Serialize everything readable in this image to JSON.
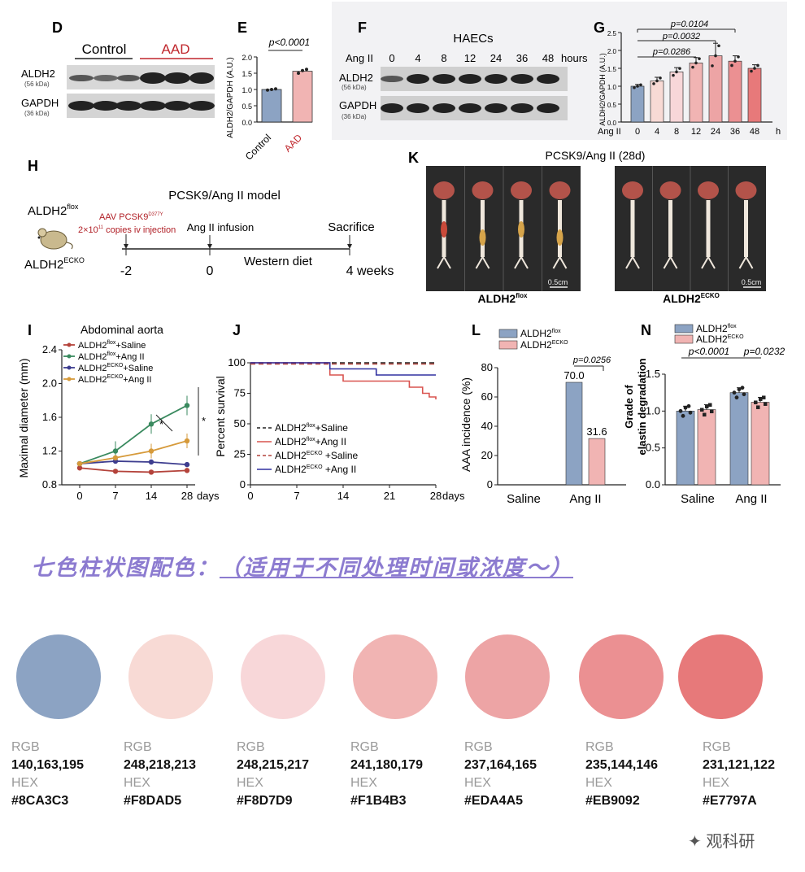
{
  "panels": {
    "D": {
      "label": "D",
      "groups": [
        "Control",
        "AAD"
      ],
      "bands": [
        {
          "name": "ALDH2",
          "size": "(56 kDa)"
        },
        {
          "name": "GAPDH",
          "size": "(36 kDa)"
        }
      ]
    },
    "E": {
      "label": "E",
      "pvalue": "p<0.0001",
      "ylabel": "ALDH2/GAPDH (A.U.)",
      "yticks": [
        "0.0",
        "0.5",
        "1.0",
        "1.5",
        "2.0"
      ],
      "categories": [
        "Control",
        "AAD"
      ],
      "values": [
        1.0,
        1.56
      ],
      "points": [
        [
          0.98,
          1.0,
          1.02
        ],
        [
          1.5,
          1.58,
          1.62
        ]
      ],
      "ylim": [
        0,
        2.0
      ]
    },
    "F": {
      "label": "F",
      "title": "HAECs",
      "row_label": "Ang II",
      "times": [
        "0",
        "4",
        "8",
        "12",
        "24",
        "36",
        "48"
      ],
      "unit": "hours",
      "bands": [
        {
          "name": "ALDH2",
          "size": "(56 kDa)"
        },
        {
          "name": "GAPDH",
          "size": "(36 kDa)"
        }
      ]
    },
    "G": {
      "label": "G",
      "ylabel": "ALDH2/GAPDH (A.U.)",
      "yticks": [
        "0.0",
        "0.5",
        "1.0",
        "1.5",
        "2.0",
        "2.5"
      ],
      "xprefix": "Ang II",
      "categories": [
        "0",
        "4",
        "8",
        "12",
        "24",
        "36",
        "48"
      ],
      "xunit": "h",
      "values": [
        1.0,
        1.15,
        1.4,
        1.65,
        1.85,
        1.7,
        1.5
      ],
      "errors": [
        0.05,
        0.1,
        0.12,
        0.15,
        0.35,
        0.15,
        0.1
      ],
      "pvalues": [
        "p=0.0104",
        "p=0.0032",
        "p=0.0286"
      ],
      "ylim": [
        0,
        2.5
      ]
    },
    "H": {
      "label": "H",
      "title": "PCSK9/Ang II model",
      "mouse_flox": "ALDH2",
      "mouse_flox_sup": "flox",
      "mouse_ecko": "ALDH2",
      "mouse_ecko_sup": "ECKO",
      "aav": "AAV PCSK9",
      "aav_sup": "D377Y",
      "injection": "2×10",
      "injection_sup": "11",
      "injection_rest": " copies iv injection",
      "infusion": "Ang II infusion",
      "sacrifice": "Sacrifice",
      "diet": "Western diet",
      "ticks": [
        "-2",
        "0",
        "4 weeks"
      ]
    },
    "K": {
      "label": "K",
      "title": "PCSK9/Ang II (28d)",
      "groups": [
        {
          "name": "ALDH2",
          "sup": "flox"
        },
        {
          "name": "ALDH2",
          "sup": "ECKO"
        }
      ],
      "scale": "0.5cm"
    },
    "I": {
      "label": "I",
      "title": "Abdominal aorta",
      "ylabel": "Maximal diameter (mm)",
      "yticks": [
        "0.8",
        "1.2",
        "1.6",
        "2.0",
        "2.4"
      ],
      "xticks": [
        "0",
        "7",
        "14",
        "28"
      ],
      "xunit": "days",
      "ylim": [
        0.8,
        2.4
      ],
      "series": [
        {
          "name": "ALDH2",
          "sup": "flox",
          "suffix": "+Saline",
          "color": "#b4433b",
          "values": [
            1.0,
            0.96,
            0.95,
            0.97
          ]
        },
        {
          "name": "ALDH2",
          "sup": "flox",
          "suffix": "+Ang II",
          "color": "#3a8a5f",
          "values": [
            1.05,
            1.2,
            1.52,
            1.74
          ]
        },
        {
          "name": "ALDH2",
          "sup": "ECKO",
          "suffix": "+Saline",
          "color": "#3d3d8f",
          "values": [
            1.05,
            1.08,
            1.07,
            1.04
          ]
        },
        {
          "name": "ALDH2",
          "sup": "ECKO",
          "suffix": "+Ang II",
          "color": "#d69a3a",
          "values": [
            1.05,
            1.12,
            1.2,
            1.32
          ]
        }
      ],
      "sig": [
        "*",
        "*"
      ]
    },
    "J": {
      "label": "J",
      "ylabel": "Percent survival",
      "yticks": [
        "0",
        "25",
        "50",
        "75",
        "100"
      ],
      "xticks": [
        "0",
        "7",
        "14",
        "21",
        "28"
      ],
      "xunit": "days",
      "ylim": [
        0,
        100
      ],
      "series": [
        {
          "name": "ALDH2",
          "sup": "flox",
          "suffix": "+Saline",
          "color": "#222222",
          "dash": true
        },
        {
          "name": "ALDH2",
          "sup": "flox",
          "suffix": "+Ang II",
          "color": "#d9534f",
          "dash": false
        },
        {
          "name": "ALDH2",
          "sup": "ECKO",
          "suffix": " +Saline",
          "color": "#b4433b",
          "dash": true
        },
        {
          "name": "ALDH2",
          "sup": "ECKO",
          "suffix": " +Ang II",
          "color": "#3030a0",
          "dash": false
        }
      ]
    },
    "L": {
      "label": "L",
      "ylabel": "AAA incidence (%)",
      "yticks": [
        "0",
        "20",
        "40",
        "60",
        "80"
      ],
      "categories": [
        "Saline",
        "Ang II"
      ],
      "legend": [
        {
          "name": "ALDH2",
          "sup": "flox",
          "color": "#8CA3C3"
        },
        {
          "name": "ALDH2",
          "sup": "ECKO",
          "color": "#F1B4B3"
        }
      ],
      "values": [
        70.0,
        31.6
      ],
      "value_labels": [
        "70.0",
        "31.6"
      ],
      "pvalue": "p=0.0256",
      "ylim": [
        0,
        80
      ]
    },
    "N": {
      "label": "N",
      "ylabel1": "Grade of",
      "ylabel2": "elastin degradation",
      "yticks": [
        "0.0",
        "0.5",
        "1.0",
        "1.5"
      ],
      "categories": [
        "Saline",
        "Ang II"
      ],
      "legend": [
        {
          "name": "ALDH2",
          "sup": "flox",
          "color": "#8CA3C3"
        },
        {
          "name": "ALDH2",
          "sup": "ECKO",
          "color": "#F1B4B3"
        }
      ],
      "values": [
        [
          1.0,
          1.02
        ],
        [
          1.25,
          1.12
        ]
      ],
      "pvalues": [
        "p<0.0001",
        "p=0.0232"
      ],
      "ylim": [
        0,
        1.5
      ]
    }
  },
  "palette_title_main": "七色柱状图配色：",
  "palette_title_sub": "（适用于不同处理时间或浓度～）",
  "swatches": [
    {
      "rgb_label": "RGB",
      "rgb": "140,163,195",
      "hex_label": "HEX",
      "hex": "#8CA3C3",
      "color": "#8CA3C3"
    },
    {
      "rgb_label": "RGB",
      "rgb": "248,218,213",
      "hex_label": "HEX",
      "hex": "#F8DAD5",
      "color": "#F8DAD5"
    },
    {
      "rgb_label": "RGB",
      "rgb": "248,215,217",
      "hex_label": "HEX",
      "hex": "#F8D7D9",
      "color": "#F8D7D9"
    },
    {
      "rgb_label": "RGB",
      "rgb": "241,180,179",
      "hex_label": "HEX",
      "hex": "#F1B4B3",
      "color": "#F1B4B3"
    },
    {
      "rgb_label": "RGB",
      "rgb": "237,164,165",
      "hex_label": "HEX",
      "hex": "#EDA4A5",
      "color": "#EDA4A5"
    },
    {
      "rgb_label": "RGB",
      "rgb": "235,144,146",
      "hex_label": "HEX",
      "hex": "#EB9092",
      "color": "#EB9092"
    },
    {
      "rgb_label": "RGB",
      "rgb": "231,121,122",
      "hex_label": "HEX",
      "hex": "#E7797A",
      "color": "#E7797A"
    }
  ],
  "watermark": "观科研",
  "chart_data": [
    {
      "type": "bar",
      "categories": [
        "Control",
        "AAD"
      ],
      "values": [
        1.0,
        1.56
      ],
      "ylabel": "ALDH2/GAPDH (A.U.)",
      "ylim": [
        0,
        2.0
      ]
    },
    {
      "type": "bar",
      "categories": [
        "0",
        "4",
        "8",
        "12",
        "24",
        "36",
        "48"
      ],
      "values": [
        1.0,
        1.15,
        1.4,
        1.65,
        1.85,
        1.7,
        1.5
      ],
      "ylabel": "ALDH2/GAPDH (A.U.)",
      "ylim": [
        0,
        2.5
      ]
    },
    {
      "type": "line",
      "x": [
        0,
        7,
        14,
        28
      ],
      "title": "Abdominal aorta",
      "ylabel": "Maximal diameter (mm)",
      "ylim": [
        0.8,
        2.4
      ],
      "series": [
        {
          "values": [
            1.0,
            0.96,
            0.95,
            0.97
          ]
        },
        {
          "values": [
            1.05,
            1.2,
            1.52,
            1.74
          ]
        },
        {
          "values": [
            1.05,
            1.08,
            1.07,
            1.04
          ]
        },
        {
          "values": [
            1.05,
            1.12,
            1.2,
            1.32
          ]
        }
      ]
    },
    {
      "type": "line",
      "ylabel": "Percent survival",
      "ylim": [
        0,
        100
      ],
      "series": [
        {
          "x": [
            0,
            28
          ],
          "values": [
            100,
            100
          ]
        },
        {
          "x": [
            0,
            11,
            12,
            14,
            20,
            24,
            26,
            27,
            28
          ],
          "values": [
            100,
            100,
            90,
            85,
            85,
            80,
            75,
            72,
            70
          ]
        },
        {
          "x": [
            0,
            28
          ],
          "values": [
            100,
            100
          ]
        },
        {
          "x": [
            0,
            11,
            12,
            15,
            19,
            28
          ],
          "values": [
            100,
            100,
            95,
            95,
            90,
            90
          ]
        }
      ]
    },
    {
      "type": "bar",
      "categories": [
        "Saline",
        "Ang II"
      ],
      "series": [
        {
          "values": [
            0,
            70.0
          ]
        },
        {
          "values": [
            0,
            31.6
          ]
        }
      ],
      "ylabel": "AAA incidence (%)",
      "ylim": [
        0,
        80
      ]
    },
    {
      "type": "bar",
      "categories": [
        "Saline",
        "Ang II"
      ],
      "series": [
        {
          "values": [
            1.0,
            1.25
          ]
        },
        {
          "values": [
            1.02,
            1.12
          ]
        }
      ],
      "ylabel": "Grade of elastin degradation",
      "ylim": [
        0,
        1.5
      ]
    }
  ]
}
